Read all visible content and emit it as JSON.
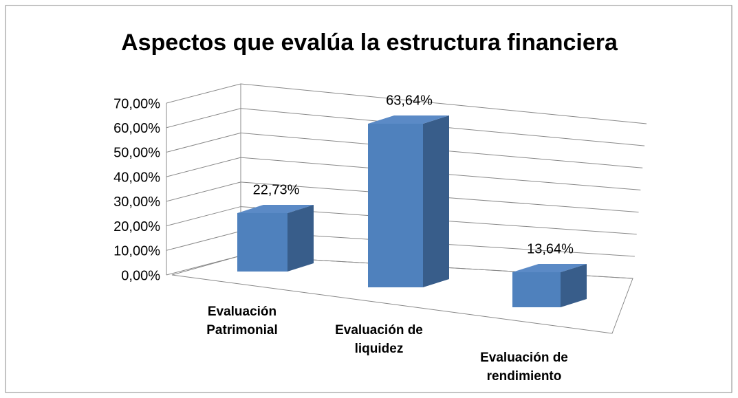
{
  "chart_data": {
    "type": "bar3d",
    "title": "Aspectos que evalúa la estructura financiera",
    "categories": [
      "Evaluación Patrimonial",
      "Evaluación de liquidez",
      "Evaluación de rendimiento"
    ],
    "values": [
      22.73,
      63.64,
      13.64
    ],
    "value_labels": [
      "22,73%",
      "63,64%",
      "13,64%"
    ],
    "color": "#4f81bd",
    "ylim": [
      0,
      70
    ],
    "yticks": [
      {
        "value": 0,
        "label": "0,00%"
      },
      {
        "value": 10,
        "label": "10,00%"
      },
      {
        "value": 20,
        "label": "20,00%"
      },
      {
        "value": 30,
        "label": "30,00%"
      },
      {
        "value": 40,
        "label": "40,00%"
      },
      {
        "value": 50,
        "label": "50,00%"
      },
      {
        "value": 60,
        "label": "60,00%"
      },
      {
        "value": 70,
        "label": "70,00%"
      }
    ],
    "grid": true
  }
}
